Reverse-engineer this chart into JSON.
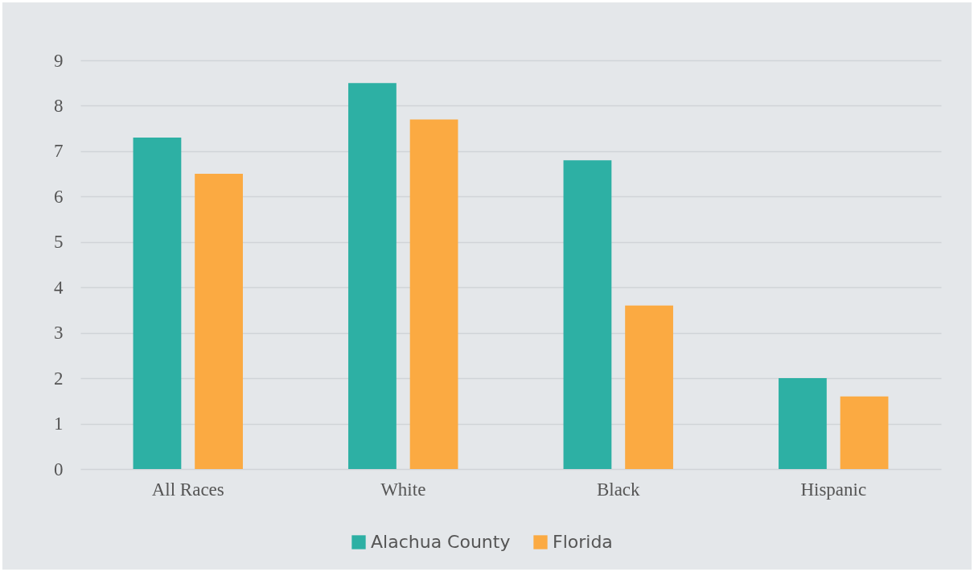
{
  "chart_data": {
    "type": "bar",
    "categories": [
      "All Races",
      "White",
      "Black",
      "Hispanic"
    ],
    "series": [
      {
        "name": "Alachua County",
        "color": "#2db0a4",
        "values": [
          7.3,
          8.5,
          6.8,
          2.0
        ]
      },
      {
        "name": "Florida",
        "color": "#fbaa42",
        "values": [
          6.5,
          7.7,
          3.6,
          1.6
        ]
      }
    ],
    "ylim": [
      0,
      9
    ],
    "yticks": [
      0,
      1,
      2,
      3,
      4,
      5,
      6,
      7,
      8,
      9
    ],
    "grid": "y",
    "legend": "bottom"
  }
}
